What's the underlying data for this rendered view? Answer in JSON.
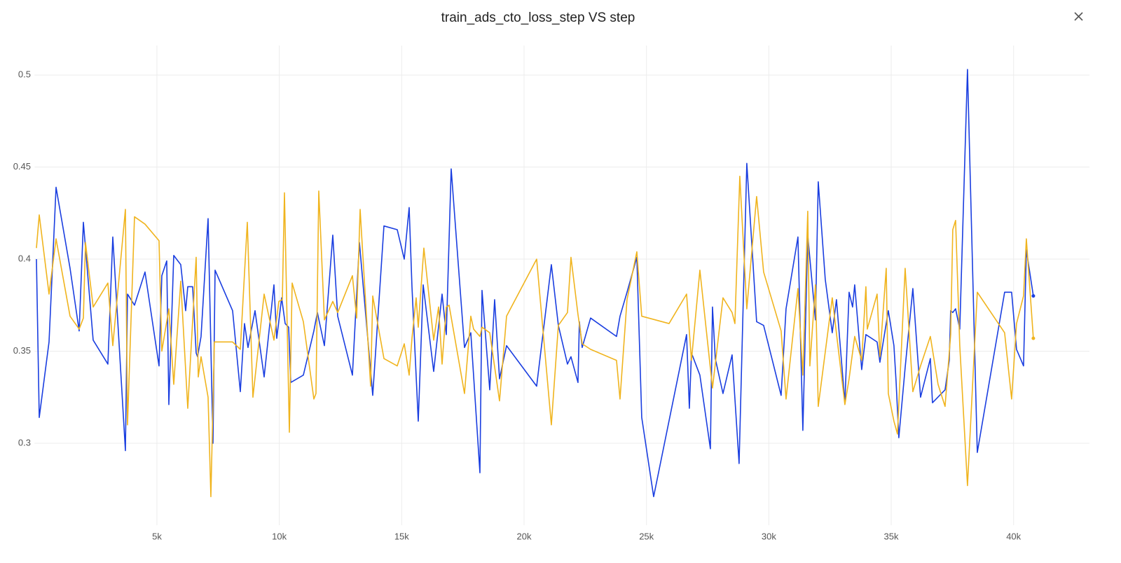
{
  "chart_data": {
    "type": "line",
    "title": "train_ads_cto_loss_step VS step",
    "xlim": [
      0,
      43100
    ],
    "ylim": [
      0.2555,
      0.516
    ],
    "xticks": [
      {
        "value": 5000,
        "label": "5k"
      },
      {
        "value": 10000,
        "label": "10k"
      },
      {
        "value": 15000,
        "label": "15k"
      },
      {
        "value": 20000,
        "label": "20k"
      },
      {
        "value": 25000,
        "label": "25k"
      },
      {
        "value": 30000,
        "label": "30k"
      },
      {
        "value": 35000,
        "label": "35k"
      },
      {
        "value": 40000,
        "label": "40k"
      }
    ],
    "yticks": [
      0.3,
      0.35,
      0.4,
      0.45,
      0.5
    ],
    "grid": true,
    "series": [
      {
        "color": "#1a3ee0",
        "x": [
          77,
          192,
          592,
          879,
          1451,
          1823,
          1995,
          2395,
          2996,
          3197,
          3712,
          3798,
          4084,
          4513,
          5086,
          5200,
          5401,
          5487,
          5687,
          5973,
          6174,
          6260,
          6460,
          6603,
          6660,
          6803,
          7090,
          7290,
          7376,
          8092,
          8407,
          8578,
          8721,
          9008,
          9380,
          9781,
          9895,
          10096,
          10239,
          10382,
          10468,
          10983,
          11412,
          11555,
          11842,
          12185,
          12386,
          12987,
          13273,
          13817,
          14046,
          14275,
          14818,
          15105,
          15305,
          15420,
          15677,
          15878,
          16307,
          16650,
          16822,
          17022,
          17566,
          17824,
          18196,
          18282,
          18597,
          18797,
          18997,
          19284,
          20514,
          21115,
          21401,
          21773,
          21916,
          22202,
          22260,
          22374,
          22718,
          23777,
          23920,
          24206,
          24607,
          24807,
          25294,
          26639,
          26753,
          26839,
          27183,
          27612,
          27698,
          27812,
          28127,
          28499,
          28785,
          29100,
          29501,
          29787,
          30502,
          30703,
          31189,
          31390,
          31590,
          31905,
          32019,
          32305,
          32591,
          32763,
          33107,
          33279,
          33422,
          33508,
          33794,
          33966,
          34424,
          34538,
          34882,
          35111,
          35197,
          35311,
          35569,
          35884,
          36198,
          36599,
          36685,
          37200,
          37372,
          37429,
          37515,
          37630,
          37801,
          38116,
          38517,
          39633,
          39919,
          40120,
          40406,
          40521,
          40807
        ],
        "values": [
          0.4,
          0.314,
          0.355,
          0.439,
          0.395,
          0.361,
          0.42,
          0.356,
          0.343,
          0.412,
          0.296,
          0.381,
          0.375,
          0.393,
          0.342,
          0.391,
          0.399,
          0.321,
          0.402,
          0.397,
          0.372,
          0.385,
          0.385,
          0.349,
          0.347,
          0.358,
          0.422,
          0.3,
          0.394,
          0.372,
          0.328,
          0.365,
          0.352,
          0.372,
          0.336,
          0.386,
          0.357,
          0.379,
          0.365,
          0.363,
          0.333,
          0.337,
          0.361,
          0.371,
          0.353,
          0.413,
          0.369,
          0.337,
          0.409,
          0.326,
          0.372,
          0.418,
          0.416,
          0.4,
          0.428,
          0.385,
          0.312,
          0.386,
          0.339,
          0.381,
          0.359,
          0.449,
          0.352,
          0.36,
          0.284,
          0.383,
          0.329,
          0.378,
          0.335,
          0.353,
          0.331,
          0.397,
          0.364,
          0.343,
          0.347,
          0.333,
          0.366,
          0.352,
          0.368,
          0.358,
          0.369,
          0.382,
          0.401,
          0.314,
          0.271,
          0.359,
          0.319,
          0.349,
          0.337,
          0.297,
          0.374,
          0.346,
          0.327,
          0.348,
          0.289,
          0.452,
          0.366,
          0.364,
          0.326,
          0.373,
          0.412,
          0.307,
          0.413,
          0.367,
          0.442,
          0.389,
          0.36,
          0.378,
          0.322,
          0.382,
          0.374,
          0.386,
          0.34,
          0.359,
          0.355,
          0.344,
          0.372,
          0.353,
          0.334,
          0.303,
          0.341,
          0.384,
          0.325,
          0.346,
          0.322,
          0.329,
          0.345,
          0.372,
          0.371,
          0.373,
          0.362,
          0.503,
          0.295,
          0.382,
          0.382,
          0.351,
          0.342,
          0.405,
          0.38
        ]
      },
      {
        "color": "#f0b41e",
        "x": [
          77,
          192,
          592,
          879,
          1451,
          1823,
          1995,
          2081,
          2395,
          2996,
          3197,
          3712,
          3798,
          4084,
          4513,
          5086,
          5200,
          5487,
          5687,
          5973,
          6260,
          6603,
          6689,
          6803,
          7090,
          7204,
          7347,
          8092,
          8407,
          8693,
          8922,
          9380,
          9781,
          9981,
          10124,
          10210,
          10411,
          10525,
          10983,
          11412,
          11498,
          11612,
          11842,
          12185,
          12386,
          12987,
          13159,
          13302,
          13731,
          13817,
          14275,
          14818,
          15105,
          15305,
          15420,
          15591,
          15677,
          15906,
          16307,
          16507,
          16650,
          16822,
          16936,
          17566,
          17824,
          17938,
          18196,
          18282,
          18597,
          18997,
          19284,
          20514,
          21115,
          21401,
          21773,
          21916,
          22202,
          22374,
          22718,
          23777,
          23920,
          24206,
          24607,
          24807,
          25923,
          26639,
          26839,
          27183,
          27698,
          28127,
          28499,
          28614,
          28814,
          29100,
          29501,
          29787,
          30502,
          30703,
          31189,
          31390,
          31590,
          31676,
          31905,
          32019,
          32591,
          33107,
          33279,
          33508,
          33794,
          33966,
          34023,
          34424,
          34538,
          34796,
          34882,
          35111,
          35254,
          35569,
          35884,
          36198,
          36599,
          36914,
          37200,
          37429,
          37515,
          37630,
          37801,
          38116,
          38517,
          39633,
          39919,
          40120,
          40406,
          40521,
          40807
        ],
        "values": [
          0.406,
          0.424,
          0.381,
          0.411,
          0.369,
          0.362,
          0.368,
          0.409,
          0.374,
          0.387,
          0.353,
          0.427,
          0.31,
          0.423,
          0.419,
          0.41,
          0.35,
          0.373,
          0.332,
          0.388,
          0.319,
          0.401,
          0.336,
          0.347,
          0.325,
          0.271,
          0.355,
          0.355,
          0.351,
          0.42,
          0.325,
          0.381,
          0.356,
          0.377,
          0.378,
          0.436,
          0.306,
          0.387,
          0.366,
          0.324,
          0.327,
          0.437,
          0.367,
          0.377,
          0.371,
          0.391,
          0.368,
          0.427,
          0.331,
          0.38,
          0.346,
          0.342,
          0.354,
          0.337,
          0.357,
          0.379,
          0.363,
          0.406,
          0.356,
          0.374,
          0.343,
          0.374,
          0.375,
          0.327,
          0.369,
          0.362,
          0.358,
          0.363,
          0.36,
          0.323,
          0.369,
          0.4,
          0.31,
          0.364,
          0.371,
          0.401,
          0.37,
          0.354,
          0.351,
          0.345,
          0.324,
          0.378,
          0.404,
          0.369,
          0.365,
          0.381,
          0.345,
          0.394,
          0.33,
          0.379,
          0.371,
          0.365,
          0.445,
          0.373,
          0.434,
          0.393,
          0.361,
          0.324,
          0.384,
          0.337,
          0.426,
          0.342,
          0.386,
          0.32,
          0.379,
          0.321,
          0.335,
          0.358,
          0.345,
          0.385,
          0.362,
          0.381,
          0.347,
          0.395,
          0.327,
          0.312,
          0.305,
          0.395,
          0.328,
          0.342,
          0.358,
          0.332,
          0.32,
          0.359,
          0.416,
          0.421,
          0.353,
          0.277,
          0.382,
          0.36,
          0.324,
          0.365,
          0.38,
          0.411,
          0.357
        ]
      }
    ]
  }
}
